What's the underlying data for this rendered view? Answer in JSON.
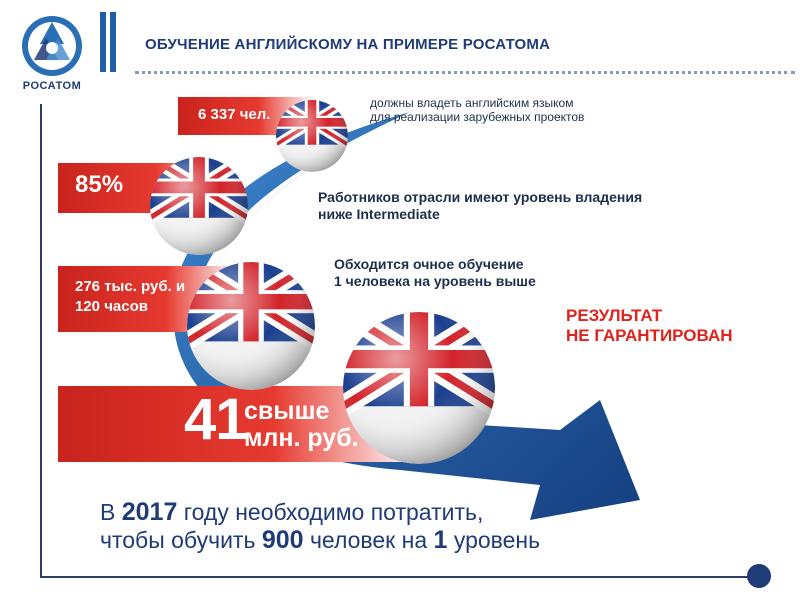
{
  "header": {
    "logo_caption": "РОСАТОМ",
    "title": "ОБУЧЕНИЕ  АНГЛИЙСКОМУ НА ПРИМЕРЕ РОСАТОМА"
  },
  "colors": {
    "brand_blue": "#1f3b78",
    "accent_red": "#e0231c",
    "arrow_blue": "#1f5fa8"
  },
  "items": [
    {
      "value": "6 337 чел.",
      "caption_lines": [
        "должны владеть английским языком",
        "для реализации зарубежных проектов"
      ]
    },
    {
      "value": "85%",
      "caption_lines": [
        "Работников  отрасли  имеют уровень владения",
        "ниже Intermediate"
      ]
    },
    {
      "value_lines": [
        "276 тыс. руб. и",
        "120 часов"
      ],
      "caption_lines": [
        "Обходится очное обучение",
        "1 человека на уровень выше"
      ]
    },
    {
      "value_number": "41",
      "value_lines": [
        "свыше",
        "млн. руб."
      ]
    }
  ],
  "result_lines": [
    "РЕЗУЛЬТАТ",
    "НЕ ГАРАНТИРОВАН"
  ],
  "bottom": {
    "line1_pre": "В ",
    "year": "2017",
    "line1_post": " году необходимо потратить,",
    "line2_pre": "чтобы обучить ",
    "people": "900",
    "line2_mid": " человек на ",
    "level": "1",
    "line2_post": " уровень"
  }
}
